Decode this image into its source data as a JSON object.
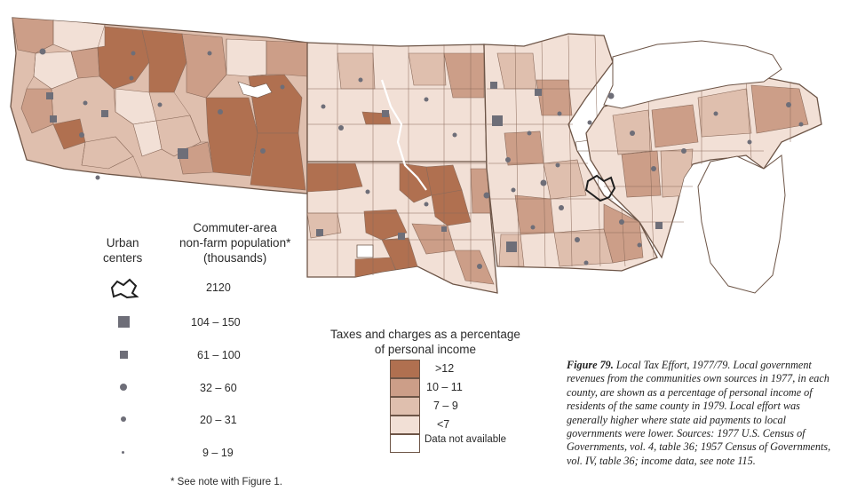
{
  "colors": {
    "over_12": "#b07050",
    "10_11": "#cc9e88",
    "7_9": "#dfbfae",
    "under_7": "#f2e0d6",
    "not_available": "#ffffff",
    "border": "#6d5547",
    "symbol": "#6e6e78",
    "lake": "#ffffff"
  },
  "legend_population": {
    "col_urban": "Urban\ncenters",
    "col_population": "Commuter-area\nnon-farm population*\n(thousands)",
    "rows": [
      {
        "symbol": "urban-outline-icon",
        "label": "2120"
      },
      {
        "symbol": "large-square-icon",
        "label": "104 – 150"
      },
      {
        "symbol": "small-square-icon",
        "label": "61 – 100"
      },
      {
        "symbol": "large-dot-icon",
        "label": "32 – 60"
      },
      {
        "symbol": "medium-dot-icon",
        "label": "20 – 31"
      },
      {
        "symbol": "small-dot-icon",
        "label": "9 – 19"
      }
    ],
    "footnote": "* See note with Figure 1."
  },
  "legend_tax": {
    "title": "Taxes and charges as a percentage\nof personal income",
    "classes": [
      {
        "key": "over_12",
        "label": ">12"
      },
      {
        "key": "10_11",
        "label": "10 – 11"
      },
      {
        "key": "7_9",
        "label": "7 – 9"
      },
      {
        "key": "under_7",
        "label": "<7"
      },
      {
        "key": "not_available",
        "label": "Data not available"
      }
    ]
  },
  "caption": {
    "figure": "Figure 79.",
    "text": " Local Tax Effort, 1977/79. Local government revenues from the communities own sources in 1977, in each county, are shown as a percentage of personal income of residents of the same county in 1979. Local effort was generally higher where state aid payments to local governments were lower. Sources: 1977 U.S. Census of Governments, vol. 4, table 36; 1957 Census of Governments, vol. IV, table 36; income data, see note 115."
  }
}
